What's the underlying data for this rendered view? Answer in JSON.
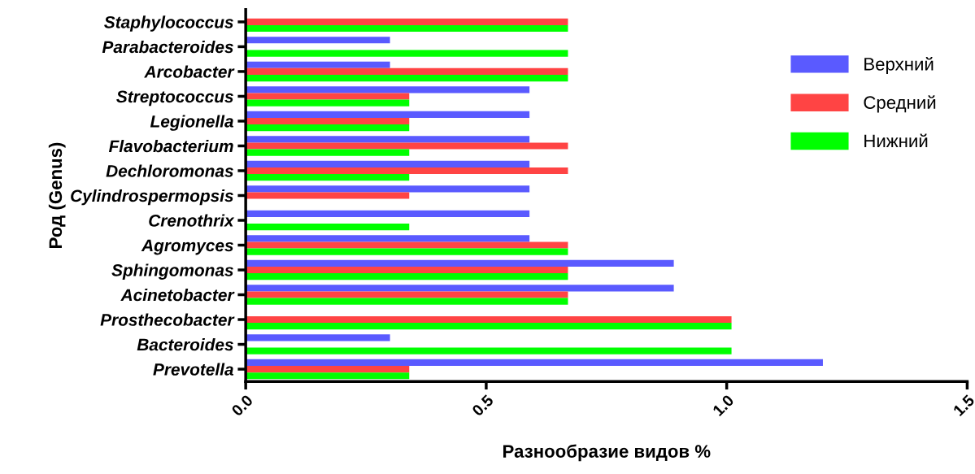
{
  "chart_data": {
    "type": "bar",
    "orientation": "horizontal",
    "xlabel": "Разнообразие видов %",
    "ylabel": "Род (Genus)",
    "categories": [
      "Staphylococcus",
      "Parabacteroides",
      "Arcobacter",
      "Streptococcus",
      "Legionella",
      "Flavobacterium",
      "Dechloromonas",
      "Cylindrospermopsis",
      "Crenothrix",
      "Agromyces",
      "Sphingomonas",
      "Acinetobacter",
      "Prosthecobacter",
      "Bacteroides",
      "Prevotella"
    ],
    "series": [
      {
        "name": "Верхний",
        "color": "#5a5aff",
        "values": [
          null,
          0.3,
          0.3,
          0.59,
          0.59,
          0.59,
          0.59,
          0.59,
          0.59,
          0.59,
          0.89,
          0.89,
          null,
          0.3,
          1.2
        ]
      },
      {
        "name": "Средний",
        "color": "#ff4444",
        "values": [
          0.67,
          null,
          0.67,
          0.34,
          0.34,
          0.67,
          0.67,
          0.34,
          null,
          0.67,
          0.67,
          0.67,
          1.01,
          null,
          0.34
        ]
      },
      {
        "name": "Нижний",
        "color": "#00ff00",
        "values": [
          0.67,
          0.67,
          0.67,
          0.34,
          0.34,
          0.34,
          0.34,
          null,
          0.34,
          0.67,
          0.67,
          0.67,
          1.01,
          1.01,
          0.34
        ]
      }
    ],
    "xlim": [
      0,
      1.5
    ],
    "xticks": [
      {
        "value": 0,
        "label": "0.0"
      },
      {
        "value": 0.5,
        "label": "0.5"
      },
      {
        "value": 1,
        "label": "1.0"
      },
      {
        "value": 1.5,
        "label": "1.5"
      }
    ],
    "grid": false,
    "legend": "upper right"
  }
}
